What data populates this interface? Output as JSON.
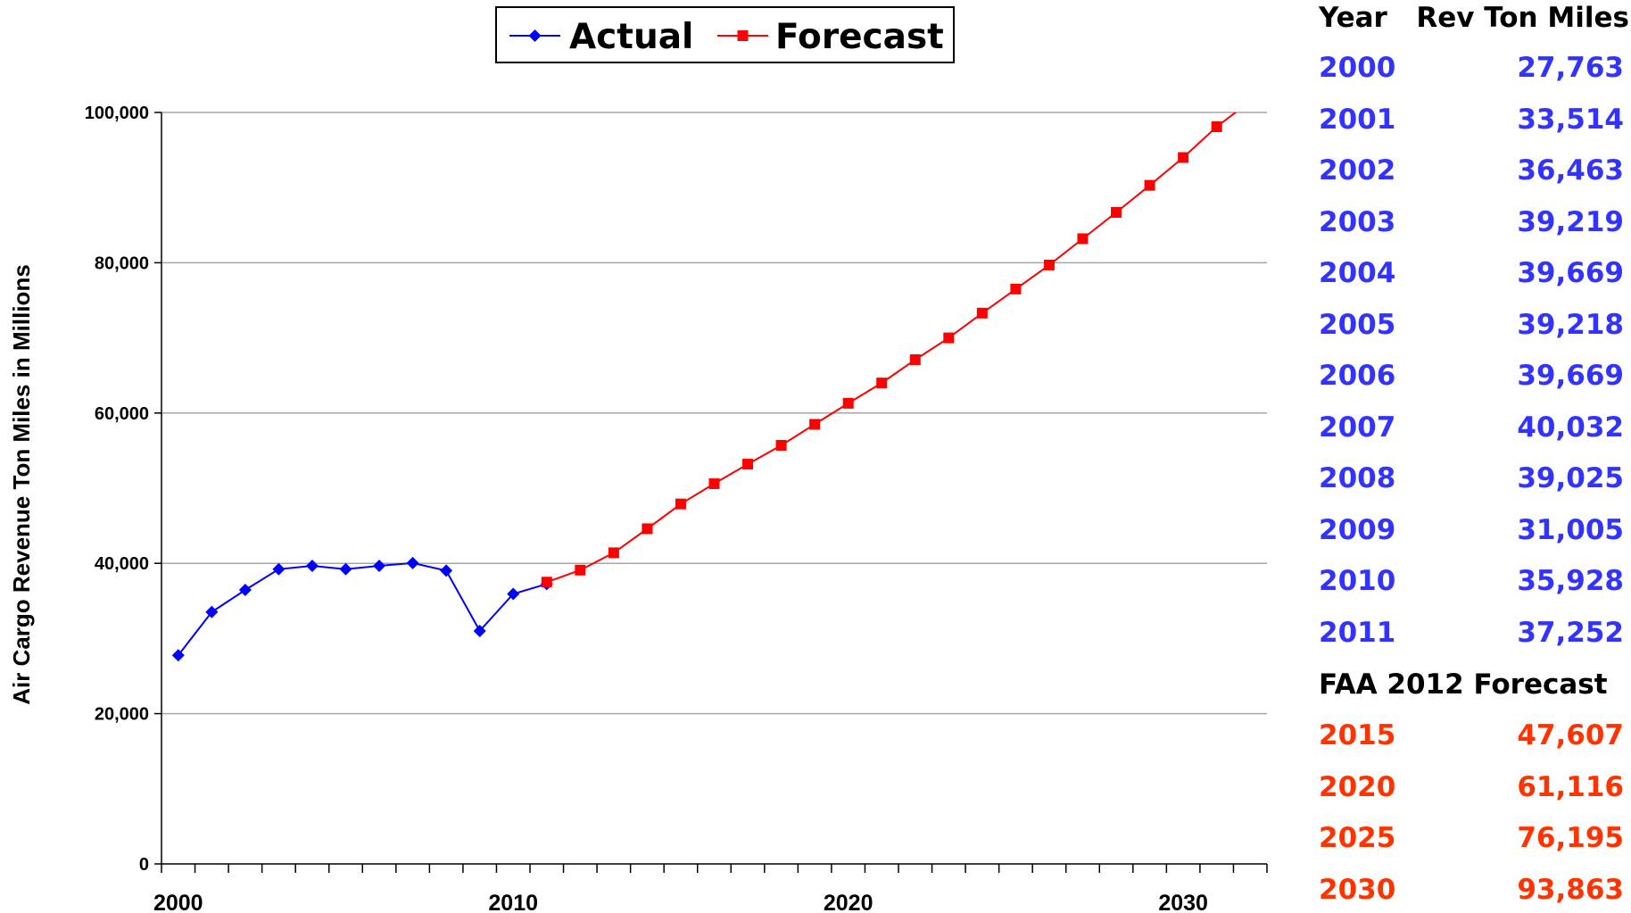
{
  "chart_data": {
    "type": "line",
    "ylabel": "Air Cargo Revenue Ton Miles in Millions",
    "xlabel": "",
    "xlim": [
      1999.5,
      2032.5
    ],
    "ylim": [
      0,
      100000
    ],
    "x_ticks": [
      2000,
      2010,
      2020,
      2030
    ],
    "x_tick_labels": [
      "2000",
      "2010",
      "2020",
      "2030"
    ],
    "y_ticks": [
      0,
      20000,
      40000,
      60000,
      80000,
      100000
    ],
    "y_tick_labels": [
      "0",
      "20,000",
      "40,000",
      "60,000",
      "80,000",
      "100,000"
    ],
    "grid": "horizontal",
    "legend": {
      "placement": "top-center"
    },
    "series": [
      {
        "name": "Actual",
        "color": "#0000ff",
        "marker": "diamond",
        "x": [
          2000,
          2001,
          2002,
          2003,
          2004,
          2005,
          2006,
          2007,
          2008,
          2009,
          2010,
          2011
        ],
        "y": [
          27763,
          33514,
          36463,
          39219,
          39669,
          39218,
          39669,
          40032,
          39025,
          31005,
          35928,
          37252
        ]
      },
      {
        "name": "Forecast",
        "color": "#ff0000",
        "marker": "square",
        "x": [
          2011,
          2012,
          2013,
          2014,
          2015,
          2016,
          2017,
          2018,
          2019,
          2020,
          2021,
          2022,
          2023,
          2024,
          2025,
          2026,
          2027,
          2028,
          2029,
          2030,
          2031,
          2032
        ],
        "y": [
          37500,
          39100,
          41400,
          44600,
          47900,
          50600,
          53200,
          55700,
          58500,
          61300,
          64000,
          67100,
          70000,
          73300,
          76500,
          79700,
          83200,
          86700,
          90300,
          94000,
          98100,
          101500
        ],
        "marked_x": [
          2011,
          2012,
          2013,
          2014,
          2015,
          2016,
          2017,
          2018,
          2019,
          2020,
          2021,
          2022,
          2023,
          2024,
          2025,
          2026,
          2027,
          2028,
          2029,
          2030,
          2031
        ]
      }
    ]
  },
  "table": {
    "header": {
      "year": "Year",
      "value": "Rev Ton Miles"
    },
    "actual_rows": [
      {
        "year": "2000",
        "value": "27,763"
      },
      {
        "year": "2001",
        "value": "33,514"
      },
      {
        "year": "2002",
        "value": "36,463"
      },
      {
        "year": "2003",
        "value": "39,219"
      },
      {
        "year": "2004",
        "value": "39,669"
      },
      {
        "year": "2005",
        "value": "39,218"
      },
      {
        "year": "2006",
        "value": "39,669"
      },
      {
        "year": "2007",
        "value": "40,032"
      },
      {
        "year": "2008",
        "value": "39,025"
      },
      {
        "year": "2009",
        "value": "31,005"
      },
      {
        "year": "2010",
        "value": "35,928"
      },
      {
        "year": "2011",
        "value": "37,252"
      }
    ],
    "forecast_heading": "FAA 2012 Forecast",
    "forecast_rows": [
      {
        "year": "2015",
        "value": "47,607"
      },
      {
        "year": "2020",
        "value": "61,116"
      },
      {
        "year": "2025",
        "value": "76,195"
      },
      {
        "year": "2030",
        "value": "93,863"
      }
    ],
    "colors": {
      "actual": "#3333ff",
      "forecast": "#ff3300"
    }
  }
}
